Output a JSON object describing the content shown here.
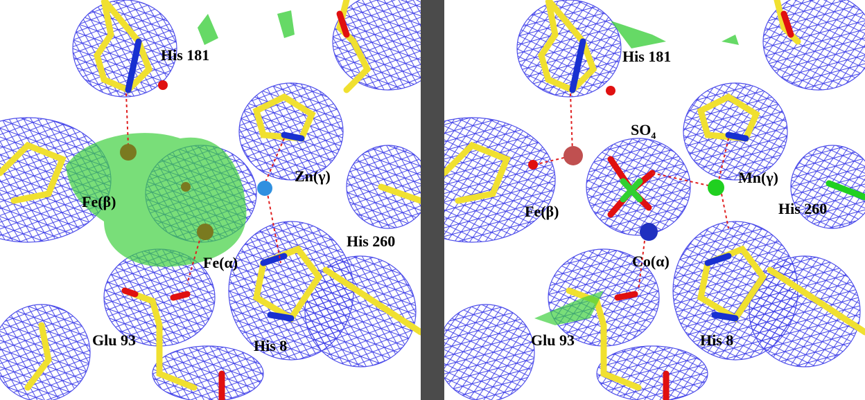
{
  "colors": {
    "mesh": "#2020e0",
    "carbon": "#f0e030",
    "nitrogen": "#1830d0",
    "oxygen": "#e01010",
    "difference_density": "#40d040",
    "divider": "#4b4b4b",
    "zinc": "#3090e0",
    "manganese": "#20d020"
  },
  "left_panel": {
    "labels": {
      "his181": "His 181",
      "zn": "Zn(γ)",
      "fe_beta": "Fe(β)",
      "his260": "His 260",
      "fe_alpha": "Fe(α)",
      "glu93": "Glu 93",
      "his8": "His 8"
    }
  },
  "right_panel": {
    "labels": {
      "his181": "His 181",
      "so4": "SO",
      "so4_sub": "4",
      "mn": "Mn(γ)",
      "fe_beta": "Fe(β)",
      "his260": "His 260",
      "co_alpha": "Co(α)",
      "glu93": "Glu 93",
      "his8": "His 8"
    }
  }
}
